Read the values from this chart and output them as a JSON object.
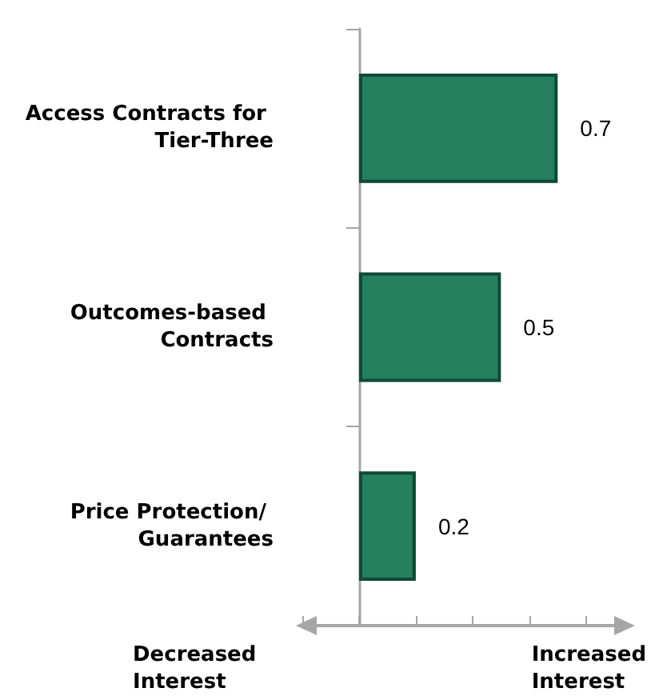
{
  "chart_data": {
    "type": "bar",
    "orientation": "horizontal",
    "categories": [
      "Access Contracts for Tier-Three",
      "Outcomes-based Contracts",
      "Price Protection/ Guarantees"
    ],
    "values": [
      0.7,
      0.5,
      0.2
    ],
    "color": "#24805f",
    "data_labels": true,
    "xlim": [
      -0.2,
      0.95
    ],
    "xticks": [
      {
        "value": -0.2,
        "label": null
      },
      {
        "value": 0,
        "label": null
      },
      {
        "value": 0.2,
        "label": null
      },
      {
        "value": 0.4,
        "label": null
      },
      {
        "value": 0.6,
        "label": null
      },
      {
        "value": 0.8,
        "label": null
      }
    ],
    "annotations": [
      "Decreased Interest",
      "Increased Interest"
    ]
  }
}
